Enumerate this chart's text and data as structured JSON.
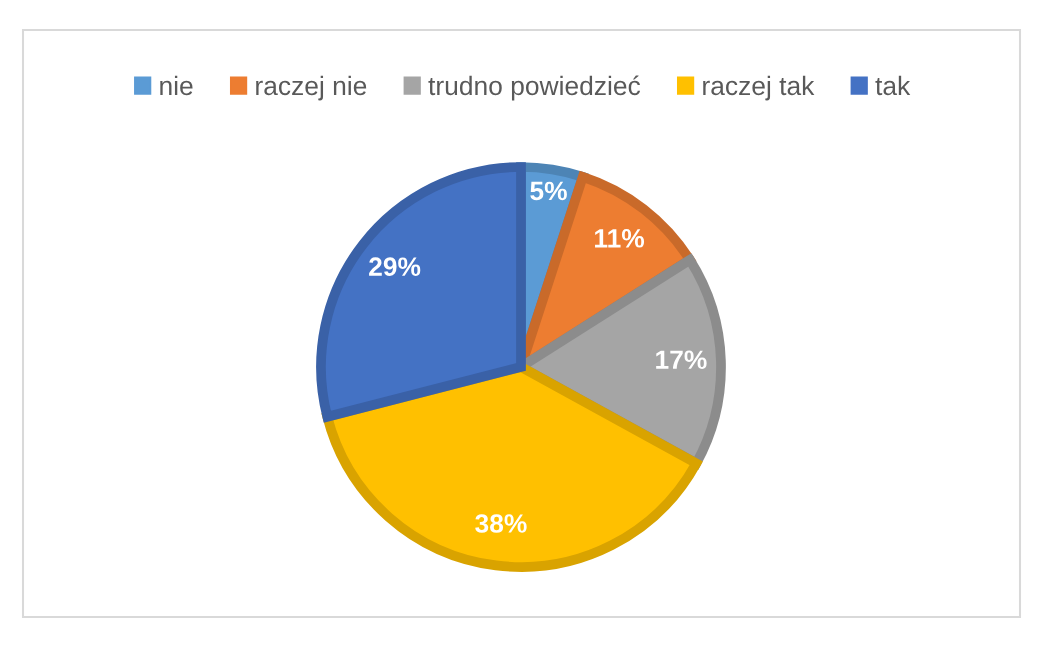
{
  "chart_data": {
    "type": "pie",
    "categories": [
      "nie",
      "raczej nie",
      "trudno powiedzieć",
      "raczej tak",
      "tak"
    ],
    "values": [
      5,
      11,
      17,
      38,
      29
    ],
    "colors": [
      "#5b9bd5",
      "#ed7d31",
      "#a5a5a5",
      "#ffc000",
      "#4472c4"
    ],
    "value_labels": [
      "5%",
      "11%",
      "17%",
      "38%",
      "29%"
    ],
    "legend": "top"
  }
}
